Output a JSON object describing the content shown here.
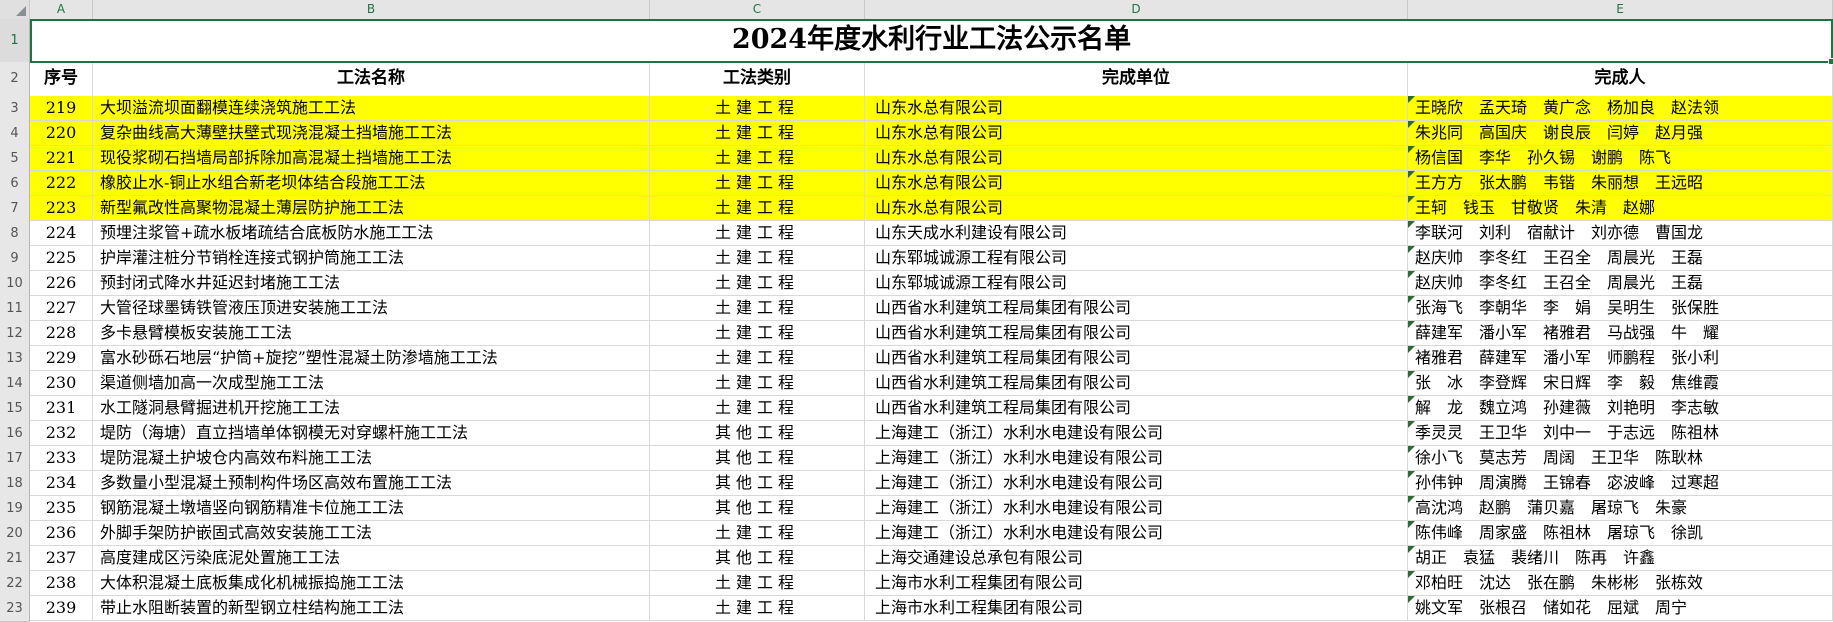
{
  "colors": {
    "accent_green": "#217346",
    "highlight_yellow": "#ffff00",
    "gridline": "#d9d9d9"
  },
  "sheet": {
    "column_letters": [
      "A",
      "B",
      "C",
      "D",
      "E"
    ],
    "gutter": {
      "row1": "1",
      "row2": "2"
    },
    "title": "2024年度水利行业工法公示名单",
    "headers": {
      "serial": "序号",
      "method_name": "工法名称",
      "category": "工法类别",
      "unit": "完成单位",
      "people": "完成人"
    }
  },
  "rows": [
    {
      "rn": "3",
      "no": "219",
      "name": "大坝溢流坝面翻模连续浇筑施工工法",
      "category": "土建工程",
      "unit": "山东水总有限公司",
      "people": "王晓欣　孟天琦　黄广念　杨加良　赵法领",
      "highlight": true
    },
    {
      "rn": "4",
      "no": "220",
      "name": "复杂曲线高大薄壁扶壁式现浇混凝土挡墙施工工法",
      "category": "土建工程",
      "unit": "山东水总有限公司",
      "people": "朱兆同　高国庆　谢良辰　闫婷　赵月强",
      "highlight": true
    },
    {
      "rn": "5",
      "no": "221",
      "name": "现役浆砌石挡墙局部拆除加高混凝土挡墙施工工法",
      "category": "土建工程",
      "unit": "山东水总有限公司",
      "people": "杨信国　李华　孙久锡　谢鹏　陈飞",
      "highlight": true
    },
    {
      "rn": "6",
      "no": "222",
      "name": "橡胶止水-铜止水组合新老坝体结合段施工工法",
      "category": "土建工程",
      "unit": "山东水总有限公司",
      "people": "王方方　张太鹏　韦锴　朱丽想　王远昭",
      "highlight": true
    },
    {
      "rn": "7",
      "no": "223",
      "name": "新型氟改性高聚物混凝土薄层防护施工工法",
      "category": "土建工程",
      "unit": "山东水总有限公司",
      "people": "王轲　钱玉　甘敬贤　朱清　赵娜",
      "highlight": true
    },
    {
      "rn": "8",
      "no": "224",
      "name": "预埋注浆管+疏水板堵疏结合底板防水施工工法",
      "category": "土建工程",
      "unit": "山东天成水利建设有限公司",
      "people": "李联河　刘利　宿献计　刘亦德　曹国龙",
      "highlight": false
    },
    {
      "rn": "9",
      "no": "225",
      "name": "护岸灌注桩分节销栓连接式钢护筒施工工法",
      "category": "土建工程",
      "unit": "山东郓城诚源工程有限公司",
      "people": "赵庆帅　李冬红　王召全　周晨光　王磊",
      "highlight": false
    },
    {
      "rn": "10",
      "no": "226",
      "name": "预封闭式降水井延迟封堵施工工法",
      "category": "土建工程",
      "unit": "山东郓城诚源工程有限公司",
      "people": "赵庆帅　李冬红　王召全　周晨光　王磊",
      "highlight": false
    },
    {
      "rn": "11",
      "no": "227",
      "name": "大管径球墨铸铁管液压顶进安装施工工法",
      "category": "土建工程",
      "unit": "山西省水利建筑工程局集团有限公司",
      "people": "张海飞　李朝华　李　娟　吴明生　张保胜",
      "highlight": false
    },
    {
      "rn": "12",
      "no": "228",
      "name": "多卡悬臂模板安装施工工法",
      "category": "土建工程",
      "unit": "山西省水利建筑工程局集团有限公司",
      "people": "薛建军　潘小军　褚雅君　马战强　牛　耀",
      "highlight": false
    },
    {
      "rn": "13",
      "no": "229",
      "name": "富水砂砾石地层“护筒+旋挖”塑性混凝土防渗墙施工工法",
      "category": "土建工程",
      "unit": "山西省水利建筑工程局集团有限公司",
      "people": "褚雅君　薛建军　潘小军　师鹏程　张小利",
      "highlight": false
    },
    {
      "rn": "14",
      "no": "230",
      "name": "渠道侧墙加高一次成型施工工法",
      "category": "土建工程",
      "unit": "山西省水利建筑工程局集团有限公司",
      "people": "张　冰　李登辉　宋日辉　李　毅　焦维霞",
      "highlight": false
    },
    {
      "rn": "15",
      "no": "231",
      "name": "水工隧洞悬臂掘进机开挖施工工法",
      "category": "土建工程",
      "unit": "山西省水利建筑工程局集团有限公司",
      "people": "解　龙　魏立鸿　孙建薇　刘艳明　李志敏",
      "highlight": false
    },
    {
      "rn": "16",
      "no": "232",
      "name": "堤防（海塘）直立挡墙单体钢模无对穿螺杆施工工法",
      "category": "其他工程",
      "unit": "上海建工（浙江）水利水电建设有限公司",
      "people": "季灵灵　王卫华　刘中一　于志远　陈祖林",
      "highlight": false
    },
    {
      "rn": "17",
      "no": "233",
      "name": "堤防混凝土护坡仓内高效布料施工工法",
      "category": "其他工程",
      "unit": "上海建工（浙江）水利水电建设有限公司",
      "people": "徐小飞　莫志芳　周阔　王卫华　陈耿林",
      "highlight": false
    },
    {
      "rn": "18",
      "no": "234",
      "name": "多数量小型混凝土预制构件场区高效布置施工工法",
      "category": "其他工程",
      "unit": "上海建工（浙江）水利水电建设有限公司",
      "people": "孙伟钟　周演腾　王锦春　宓波峰　过寒超",
      "highlight": false
    },
    {
      "rn": "19",
      "no": "235",
      "name": "钢筋混凝土墩墙竖向钢筋精准卡位施工工法",
      "category": "其他工程",
      "unit": "上海建工（浙江）水利水电建设有限公司",
      "people": "高沈鸿　赵鹏　蒲贝嘉　屠琼飞　朱豪",
      "highlight": false
    },
    {
      "rn": "20",
      "no": "236",
      "name": "外脚手架防护嵌固式高效安装施工工法",
      "category": "土建工程",
      "unit": "上海建工（浙江）水利水电建设有限公司",
      "people": "陈伟峰　周家盛　陈祖林　屠琼飞　徐凯",
      "highlight": false
    },
    {
      "rn": "21",
      "no": "237",
      "name": "高度建成区污染底泥处置施工工法",
      "category": "其他工程",
      "unit": "上海交通建设总承包有限公司",
      "people": "胡正　袁猛　裴绪川　陈再　许鑫",
      "highlight": false
    },
    {
      "rn": "22",
      "no": "238",
      "name": "大体积混凝土底板集成化机械振捣施工工法",
      "category": "土建工程",
      "unit": "上海市水利工程集团有限公司",
      "people": "邓柏旺　沈达　张在鹏　朱彬彬　张栋效",
      "highlight": false
    },
    {
      "rn": "23",
      "no": "239",
      "name": "带止水阻断装置的新型钢立柱结构施工工法",
      "category": "土建工程",
      "unit": "上海市水利工程集团有限公司",
      "people": "姚文军　张根召　储如花　屈斌　周宁",
      "highlight": false
    }
  ]
}
